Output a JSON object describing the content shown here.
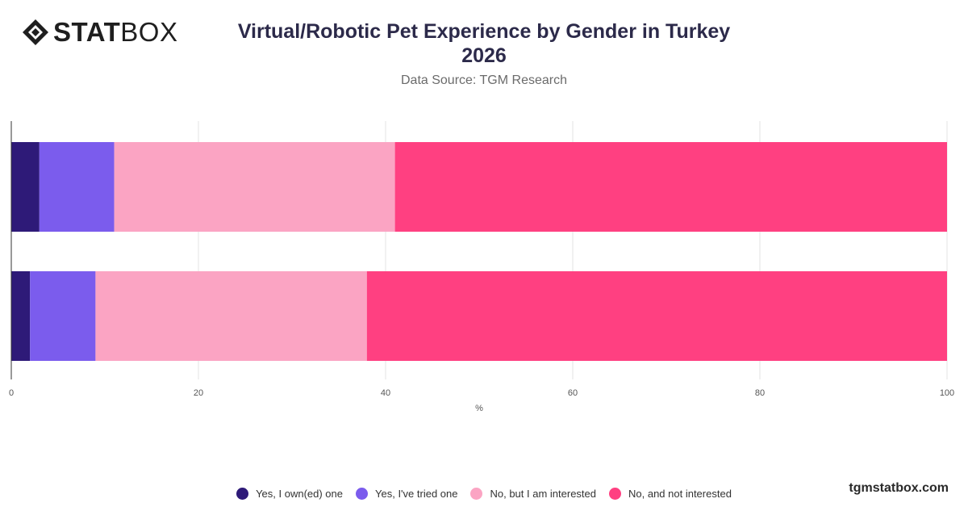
{
  "brand": {
    "logo_text_bold": "STAT",
    "logo_text_light": "BOX",
    "footer": "tgmstatbox.com"
  },
  "header": {
    "title": "Virtual/Robotic Pet Experience by Gender in Turkey",
    "title_year": "2026",
    "subtitle": "Data Source: TGM Research"
  },
  "chart_data": {
    "type": "bar",
    "orientation": "horizontal",
    "stacked": true,
    "categories": [
      "",
      ""
    ],
    "series": [
      {
        "name": "Yes, I own(ed) one",
        "color": "#2e1a78",
        "values": [
          3,
          2
        ]
      },
      {
        "name": "Yes, I've tried one",
        "color": "#7b5ced",
        "values": [
          8,
          7
        ]
      },
      {
        "name": "No, but I am interested",
        "color": "#fba4c3",
        "values": [
          30,
          29
        ]
      },
      {
        "name": "No, and not interested",
        "color": "#ff4081",
        "values": [
          59,
          62
        ]
      }
    ],
    "xlabel": "%",
    "xlim": [
      0,
      100
    ],
    "xticks": [
      0,
      20,
      40,
      60,
      80,
      100
    ],
    "grid": true,
    "legend_position": "bottom"
  }
}
